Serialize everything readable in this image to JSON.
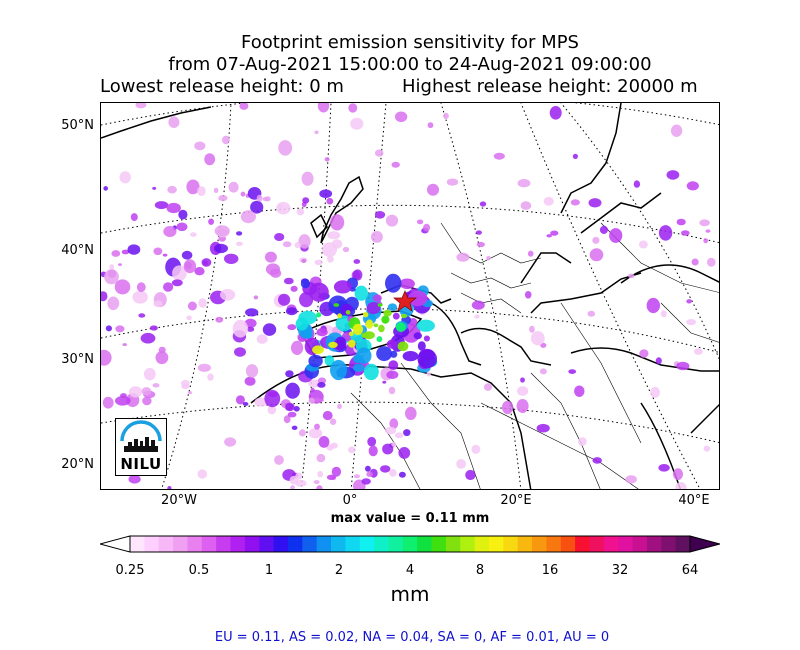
{
  "title": {
    "line1": "Footprint emission sensitivity for MPS",
    "line2": "from 07-Aug-2021 15:00:00 to 24-Aug-2021 09:00:00",
    "line3_left": "Lowest release height: 0 m",
    "line3_right": "Highest release height: 20000 m"
  },
  "map": {
    "lat_labels": [
      "50°N",
      "40°N",
      "30°N",
      "20°N"
    ],
    "lon_labels": [
      "20°W",
      "0°",
      "20°E",
      "40°E"
    ],
    "release_marker": "red-star",
    "logo_text": "NILU"
  },
  "max_value": "max value = 0.11 mm",
  "colorbar": {
    "tick_labels": [
      "0.25",
      "0.5",
      "1",
      "2",
      "4",
      "8",
      "16",
      "32",
      "64"
    ],
    "unit": "mm",
    "colors": [
      "#ffe6ff",
      "#ffd0ff",
      "#f8b8f8",
      "#f0a0f0",
      "#e880f0",
      "#dd60f0",
      "#c83cf0",
      "#b020f0",
      "#9010f0",
      "#6010f0",
      "#3010f0",
      "#1030f0",
      "#1060f0",
      "#1090f0",
      "#10b8f0",
      "#10d8f0",
      "#10f0f0",
      "#10f0c8",
      "#10f0a0",
      "#10f070",
      "#10e040",
      "#40e010",
      "#80e010",
      "#b0f010",
      "#e0f010",
      "#f8f010",
      "#f8d810",
      "#f8b810",
      "#f89810",
      "#f87810",
      "#f85010",
      "#f81030",
      "#f01060",
      "#f01090",
      "#e010a0",
      "#c81090",
      "#a01080",
      "#801070",
      "#601060"
    ]
  },
  "region_summary": "EU = 0.11,  AS = 0.02,  NA = 0.04,  SA = 0,  AF = 0.01,  AU = 0"
}
